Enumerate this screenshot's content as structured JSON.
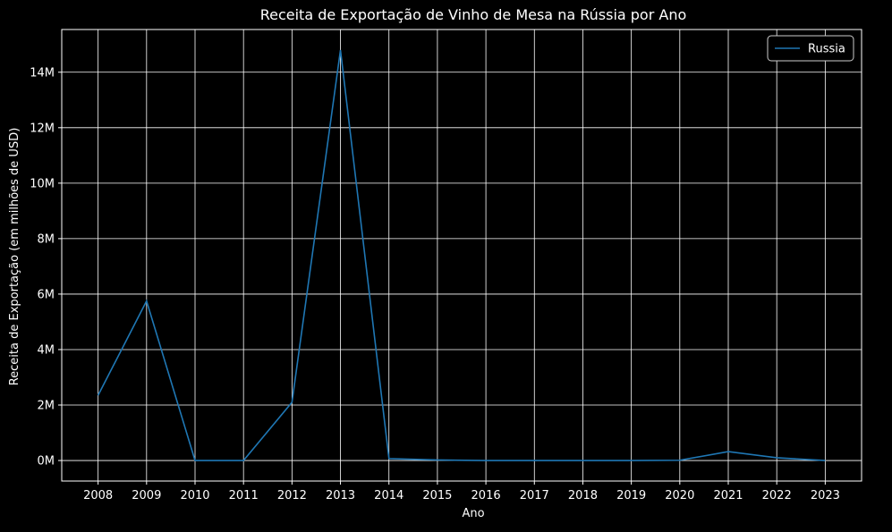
{
  "chart_data": {
    "type": "line",
    "title": "Receita de Exportação de Vinho de Mesa na Rússia por Ano",
    "xlabel": "Ano",
    "ylabel": "Receita de Exportação (em milhões de USD)",
    "x": [
      2008,
      2009,
      2010,
      2011,
      2012,
      2013,
      2014,
      2015,
      2016,
      2017,
      2018,
      2019,
      2020,
      2021,
      2022,
      2023
    ],
    "series": [
      {
        "name": "Russia",
        "color": "#1f77b4",
        "values": [
          2350000,
          5750000,
          0,
          0,
          2100000,
          14800000,
          70000,
          20000,
          0,
          0,
          0,
          0,
          10000,
          320000,
          100000,
          0
        ]
      }
    ],
    "y_ticks": [
      0,
      2000000,
      4000000,
      6000000,
      8000000,
      10000000,
      12000000,
      14000000
    ],
    "y_tick_labels": [
      "0M",
      "2M",
      "4M",
      "6M",
      "8M",
      "10M",
      "12M",
      "14M"
    ],
    "x_tick_labels": [
      "2008",
      "2009",
      "2010",
      "2011",
      "2012",
      "2013",
      "2014",
      "2015",
      "2016",
      "2017",
      "2018",
      "2019",
      "2020",
      "2021",
      "2022",
      "2023"
    ],
    "xlim": [
      2007.25,
      2023.75
    ],
    "ylim": [
      -740000,
      15540000
    ],
    "grid": true,
    "legend_position": "top-right",
    "background_color": "#000000",
    "text_color": "#ffffff",
    "grid_color": "#ffffff"
  }
}
